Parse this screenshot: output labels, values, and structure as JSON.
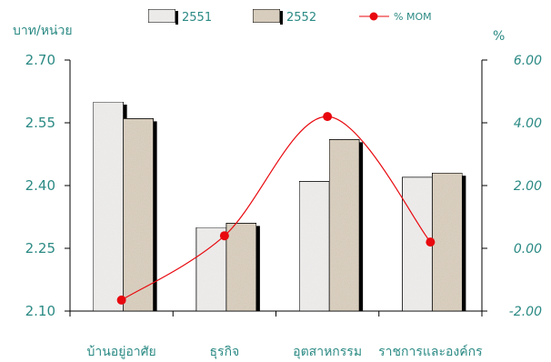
{
  "chart_data": {
    "type": "bar+line",
    "left_axis_unit": "บาท/หน่วย",
    "right_axis_unit": "%",
    "categories": [
      "บ้านอยู่อาศัย",
      "ธุรกิจ",
      "อุตสาหกรรม",
      "ราชการและองค์กร"
    ],
    "series": [
      {
        "name": "2551",
        "type": "bar",
        "axis": "left",
        "values": [
          2.6,
          2.3,
          2.41,
          2.42
        ]
      },
      {
        "name": "2552",
        "type": "bar",
        "axis": "left",
        "values": [
          2.56,
          2.31,
          2.51,
          2.43
        ]
      },
      {
        "name": "% MOM",
        "type": "line",
        "axis": "right",
        "values": [
          -1.65,
          0.4,
          4.2,
          0.2
        ]
      }
    ],
    "left_ylim": [
      2.1,
      2.7
    ],
    "left_ticks": [
      "2.10",
      "2.25",
      "2.40",
      "2.55",
      "2.70"
    ],
    "right_ylim": [
      -2.0,
      6.0
    ],
    "right_ticks": [
      "-2.00",
      "0.00",
      "2.00",
      "4.00",
      "6.00"
    ],
    "legend_placement": "top",
    "colors": {
      "bar_2551": "#ecebea",
      "bar_2552": "#d9cfc0",
      "line": "#e8080e",
      "text": "#2b8a84"
    }
  }
}
